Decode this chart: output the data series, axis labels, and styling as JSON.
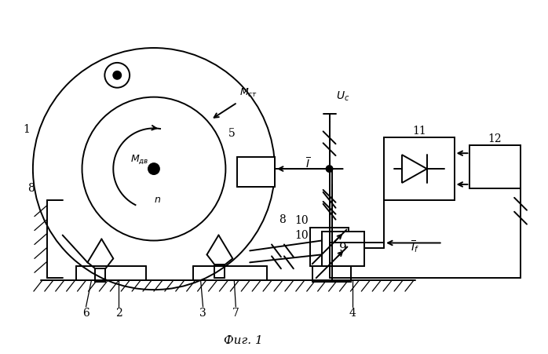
{
  "bg_color": "#ffffff",
  "line_color": "#000000",
  "lw": 1.4
}
